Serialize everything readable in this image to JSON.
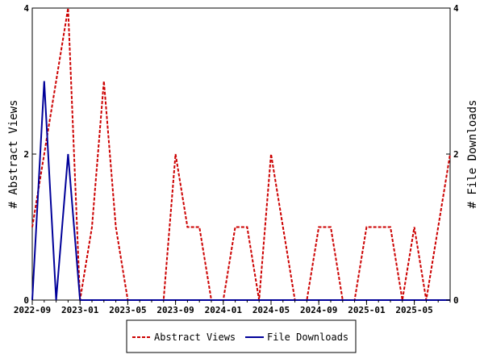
{
  "chart_data": {
    "type": "line",
    "x": [
      "2022-09",
      "2022-10",
      "2022-11",
      "2022-12",
      "2023-01",
      "2023-02",
      "2023-03",
      "2023-04",
      "2023-05",
      "2023-06",
      "2023-07",
      "2023-08",
      "2023-09",
      "2023-10",
      "2023-11",
      "2023-12",
      "2024-01",
      "2024-02",
      "2024-03",
      "2024-04",
      "2024-05",
      "2024-06",
      "2024-07",
      "2024-08",
      "2024-09",
      "2024-10",
      "2024-11",
      "2024-12",
      "2025-01",
      "2025-02",
      "2025-03",
      "2025-04",
      "2025-05",
      "2025-06",
      "2025-07",
      "2025-08"
    ],
    "x_tick_labels": [
      "2022-09",
      "2023-01",
      "2023-05",
      "2023-09",
      "2024-01",
      "2024-05",
      "2024-09",
      "2025-01",
      "2025-05"
    ],
    "series": [
      {
        "name": "Abstract Views",
        "axis": "left",
        "color": "#cc0000",
        "style": "dashed",
        "values": [
          1,
          2,
          3,
          4,
          0,
          1,
          3,
          1,
          0,
          0,
          0,
          0,
          2,
          1,
          1,
          0,
          0,
          1,
          1,
          0,
          2,
          1,
          0,
          0,
          1,
          1,
          0,
          0,
          1,
          1,
          1,
          0,
          1,
          0,
          1,
          2
        ]
      },
      {
        "name": "File Downloads",
        "axis": "right",
        "color": "#000099",
        "style": "solid",
        "values": [
          0,
          3,
          0,
          2,
          0,
          0,
          0,
          0,
          0,
          0,
          0,
          0,
          0,
          0,
          0,
          0,
          0,
          0,
          0,
          0,
          0,
          0,
          0,
          0,
          0,
          0,
          0,
          0,
          0,
          0,
          0,
          0,
          0,
          0,
          0,
          0
        ]
      }
    ],
    "ylabel_left": "# Abstract Views",
    "ylabel_right": "# File Downloads",
    "ylim_left": [
      0,
      4
    ],
    "ylim_right": [
      0,
      4
    ],
    "yticks_left": [
      "0",
      "2",
      "4"
    ],
    "yticks_right": [
      "0",
      "2",
      "4"
    ],
    "legend_placement": "bottom",
    "grid": false
  }
}
